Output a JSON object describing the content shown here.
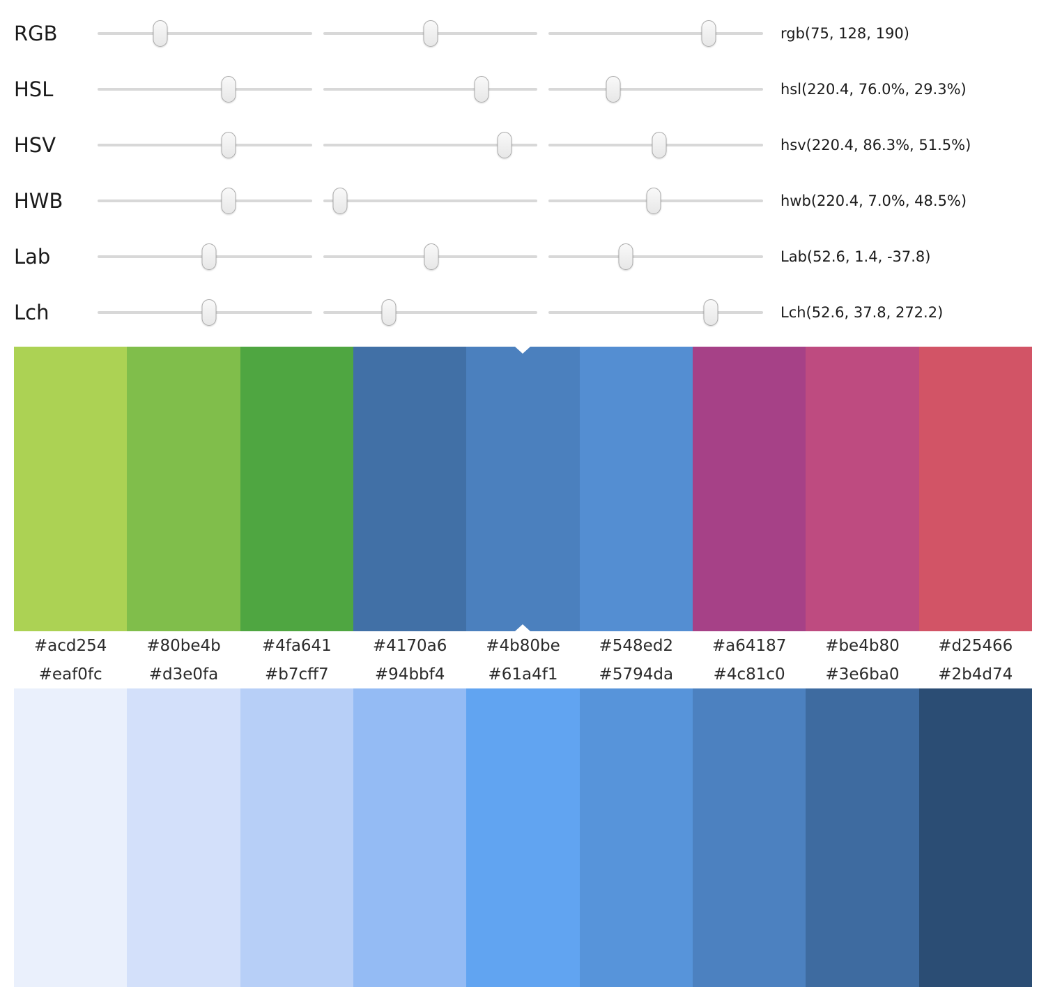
{
  "sliders": {
    "rows": [
      {
        "label": "RGB",
        "value": "rgb(75, 128, 190)",
        "thumbs": [
          29.4,
          50.2,
          74.5
        ]
      },
      {
        "label": "HSL",
        "value": "hsl(220.4, 76.0%, 29.3%)",
        "thumbs": [
          61.2,
          74.0,
          30.0
        ]
      },
      {
        "label": "HSV",
        "value": "hsv(220.4, 86.3%, 51.5%)",
        "thumbs": [
          61.2,
          84.5,
          51.5
        ]
      },
      {
        "label": "HWB",
        "value": "hwb(220.4, 7.0%, 48.5%)",
        "thumbs": [
          61.2,
          8.0,
          49.0
        ]
      },
      {
        "label": "Lab",
        "value": "Lab(52.6, 1.4, -37.8)",
        "thumbs": [
          52.0,
          50.5,
          36.0
        ]
      },
      {
        "label": "Lch",
        "value": "Lch(52.6, 37.8, 272.2)",
        "thumbs": [
          52.0,
          30.5,
          75.6
        ]
      }
    ]
  },
  "palette": {
    "selected_index": 4,
    "swatches": [
      "#acd254",
      "#80be4b",
      "#4fa641",
      "#4170a6",
      "#4b80be",
      "#548ed2",
      "#a64187",
      "#be4b80",
      "#d25466"
    ]
  },
  "scale": {
    "swatches": [
      "#eaf0fc",
      "#d3e0fa",
      "#b7cff7",
      "#94bbf4",
      "#61a4f1",
      "#5794da",
      "#4c81c0",
      "#3e6ba0",
      "#2b4d74"
    ]
  }
}
